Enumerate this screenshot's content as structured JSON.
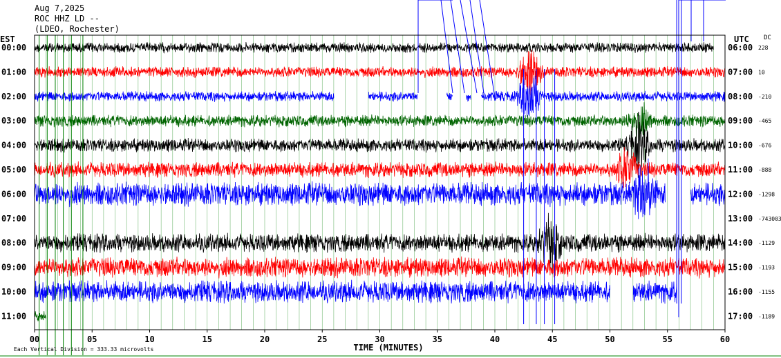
{
  "header": {
    "date": "Aug 7,2025",
    "station": "ROC HHZ LD --",
    "network": "(LDEO, Rochester)"
  },
  "axis_titles": {
    "left": "EST",
    "right": "UTC",
    "dc": "DC",
    "bottom": "TIME (MINUTES)"
  },
  "footer": {
    "scale_note": "Each Vertical Division =  333.33 microvolts"
  },
  "colors": {
    "trace_cycle": [
      "#000000",
      "#ff0000",
      "#0000ff",
      "#006400"
    ],
    "grid": "#008000",
    "frame": "#000000",
    "spike": "#0000ff"
  },
  "chart_data": {
    "type": "line",
    "title": "",
    "xlabel": "TIME (MINUTES)",
    "xlim": [
      0,
      60
    ],
    "x_ticks": [
      "00",
      "05",
      "10",
      "15",
      "20",
      "25",
      "30",
      "35",
      "40",
      "45",
      "50",
      "55",
      "60"
    ],
    "grid": true,
    "rows": [
      {
        "est": "00:00",
        "utc": "06:00",
        "dc": "228",
        "color": "#000000",
        "amplitude": 0.3,
        "start": 0,
        "end": 59,
        "gaps": []
      },
      {
        "est": "01:00",
        "utc": "07:00",
        "dc": "10",
        "color": "#ff0000",
        "amplitude": 0.32,
        "start": 0,
        "end": 60,
        "gaps": []
      },
      {
        "est": "02:00",
        "utc": "08:00",
        "dc": "-210",
        "color": "#0000ff",
        "amplitude": 0.3,
        "start": 0,
        "end": 60,
        "gaps": [
          [
            26,
            29
          ],
          [
            33.3,
            35.8
          ],
          [
            36.3,
            37.5
          ],
          [
            37.9,
            38.8
          ]
        ]
      },
      {
        "est": "03:00",
        "utc": "09:00",
        "dc": "-465",
        "color": "#006400",
        "amplitude": 0.35,
        "start": 0,
        "end": 60,
        "gaps": []
      },
      {
        "est": "04:00",
        "utc": "10:00",
        "dc": "-676",
        "color": "#000000",
        "amplitude": 0.4,
        "start": 0,
        "end": 60,
        "gaps": []
      },
      {
        "est": "05:00",
        "utc": "11:00",
        "dc": "-888",
        "color": "#ff0000",
        "amplitude": 0.45,
        "start": 0,
        "end": 60,
        "gaps": []
      },
      {
        "est": "06:00",
        "utc": "12:00",
        "dc": "-1298",
        "color": "#0000ff",
        "amplitude": 0.7,
        "start": 0,
        "end": 60,
        "gaps": [
          [
            54.8,
            57
          ]
        ]
      },
      {
        "est": "07:00",
        "utc": "13:00",
        "dc": "-743003",
        "color": "#006400",
        "amplitude": 0.0,
        "start": 0,
        "end": 0,
        "gaps": []
      },
      {
        "est": "08:00",
        "utc": "14:00",
        "dc": "-1129",
        "color": "#000000",
        "amplitude": 0.55,
        "start": 0,
        "end": 60,
        "gaps": []
      },
      {
        "est": "09:00",
        "utc": "15:00",
        "dc": "-1193",
        "color": "#ff0000",
        "amplitude": 0.6,
        "start": 0,
        "end": 60,
        "gaps": []
      },
      {
        "est": "10:00",
        "utc": "16:00",
        "dc": "-1155",
        "color": "#0000ff",
        "amplitude": 0.65,
        "start": 0,
        "end": 59,
        "gaps": [
          [
            50,
            52
          ],
          [
            55.8,
            59
          ]
        ]
      },
      {
        "est": "11:00",
        "utc": "17:00",
        "dc": "-1189",
        "color": "#006400",
        "amplitude": 0.3,
        "start": 0,
        "end": 1,
        "gaps": []
      }
    ],
    "events": [
      {
        "row": 1,
        "minute": 43.0,
        "amplitude": 1.4
      },
      {
        "row": 2,
        "minute": 43.0,
        "amplitude": 1.6
      },
      {
        "row": 3,
        "minute": 52.5,
        "amplitude": 1.2
      },
      {
        "row": 4,
        "minute": 52.5,
        "amplitude": 1.6
      },
      {
        "row": 5,
        "minute": 51.5,
        "amplitude": 1.2
      },
      {
        "row": 6,
        "minute": 53.0,
        "amplitude": 1.8
      },
      {
        "row": 8,
        "minute": 44.8,
        "amplitude": 1.4
      }
    ],
    "blue_spikes_minutes": [
      42.5,
      43.6,
      44.3,
      45.2,
      55.8,
      56.2
    ],
    "green_spikes_minutes": [
      0.4,
      1.1,
      1.8,
      2.5,
      3.2,
      4.2
    ]
  }
}
